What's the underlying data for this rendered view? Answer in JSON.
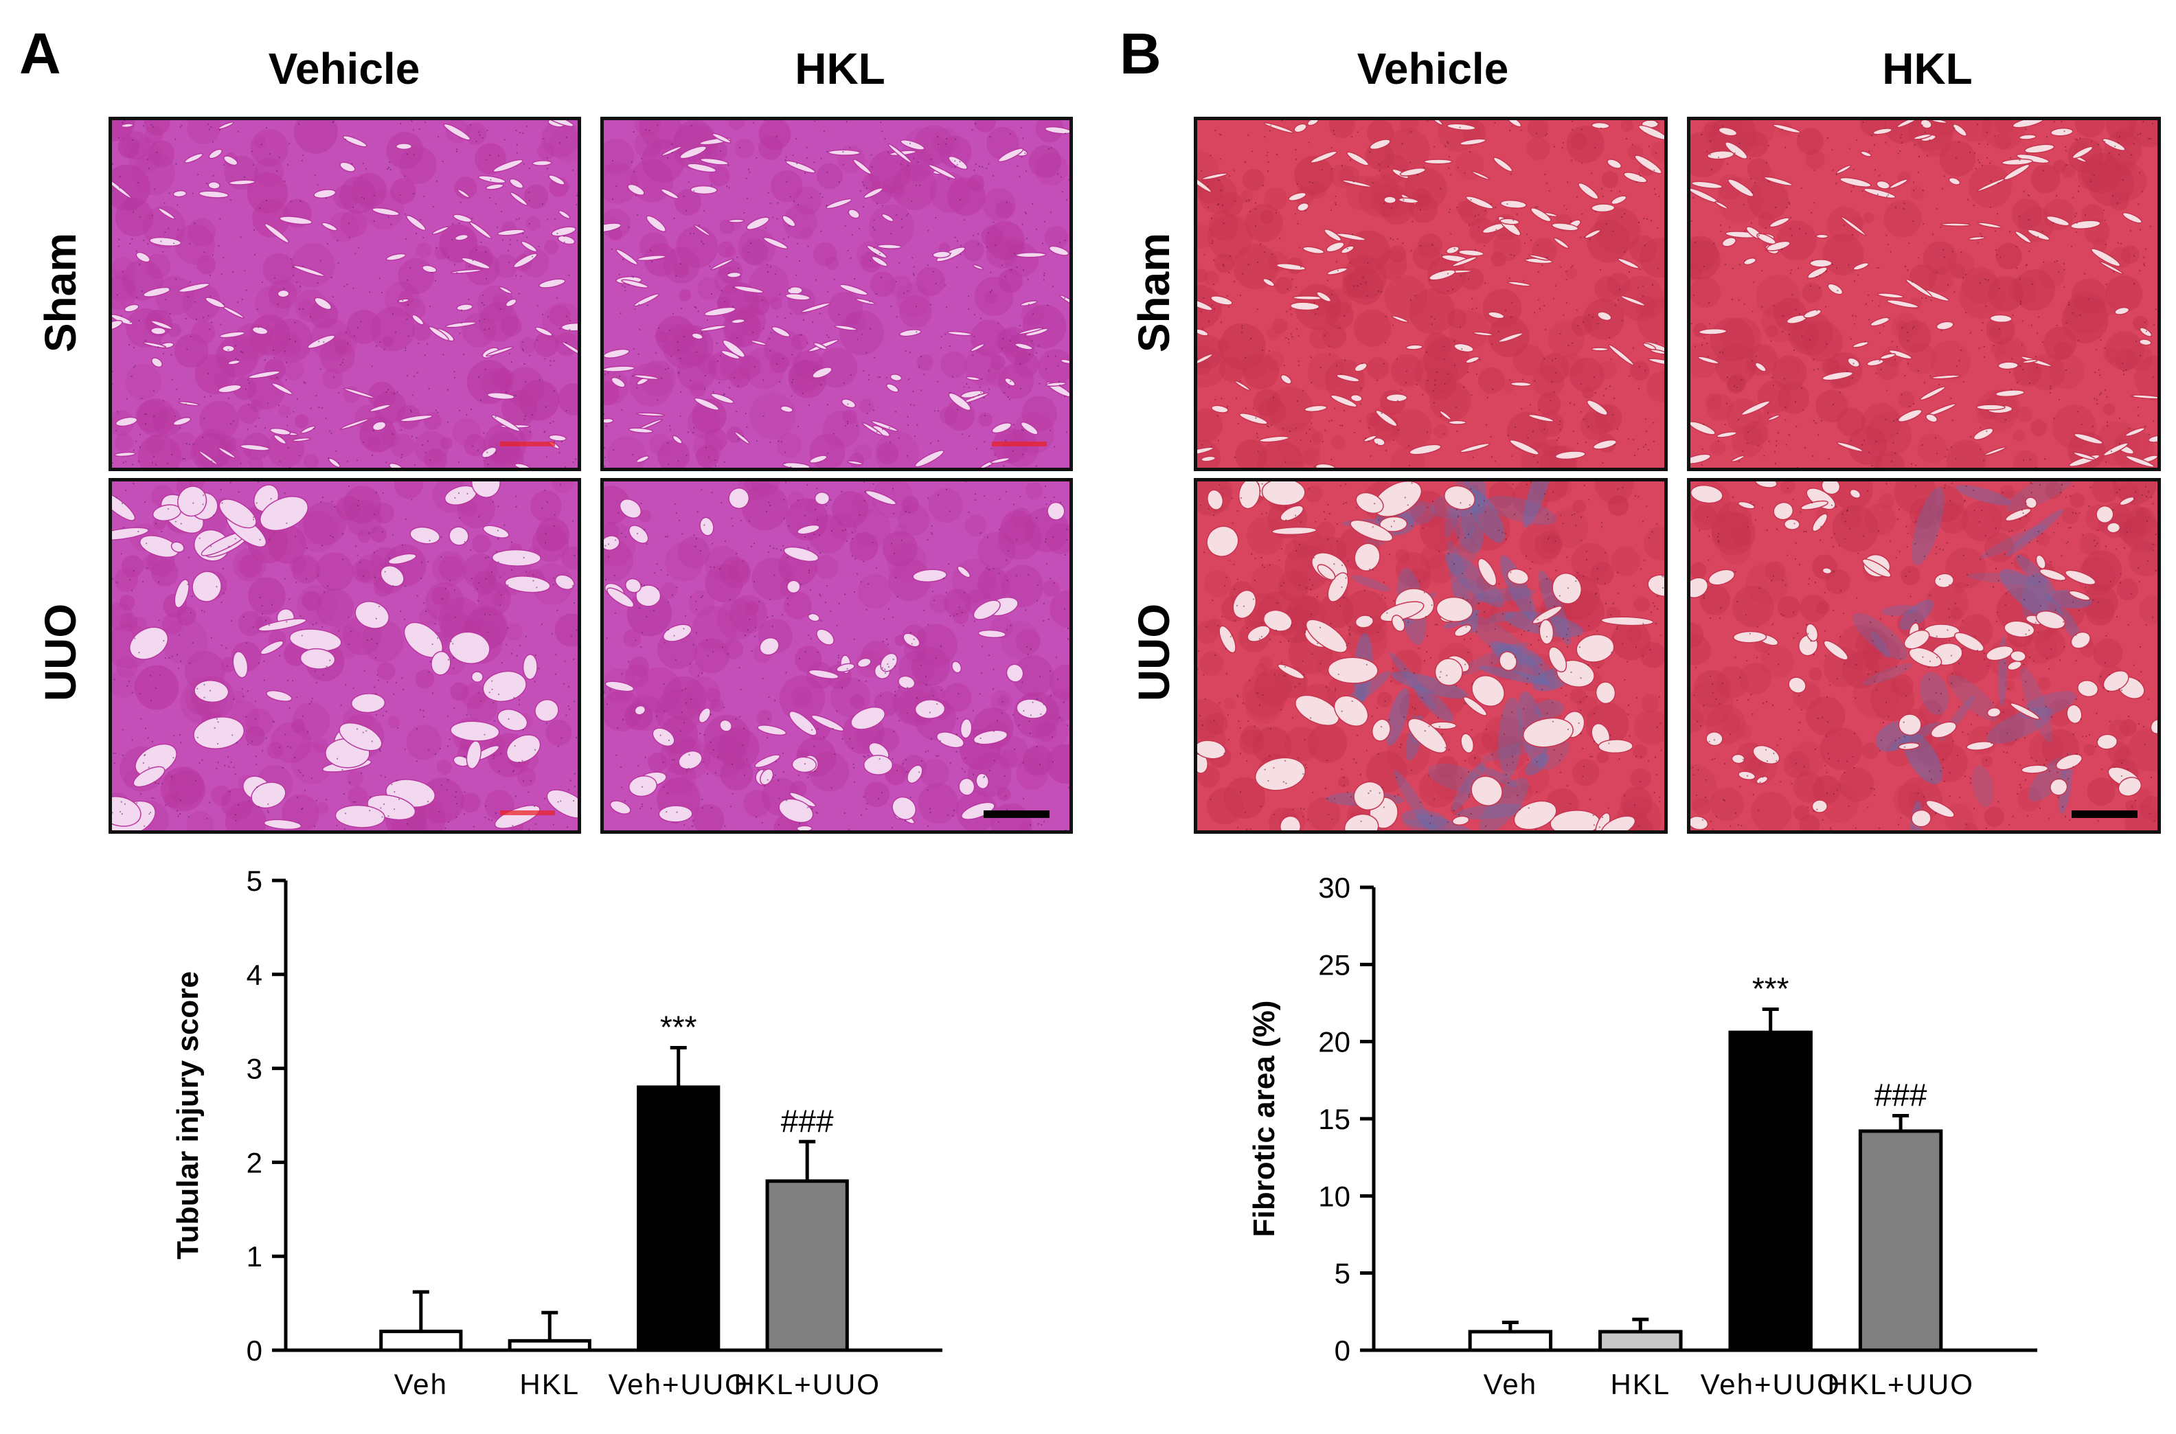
{
  "panel_a": {
    "letter": "A",
    "columns": [
      "Vehicle",
      "HKL"
    ],
    "rows": [
      "Sham",
      "UUO"
    ],
    "stain": {
      "background": "#c44fb8",
      "tissue": "#b8379f",
      "lumen": "#f3d9ef",
      "nuclei": "#5b1f63"
    }
  },
  "panel_b": {
    "letter": "B",
    "columns": [
      "Vehicle",
      "HKL"
    ],
    "rows": [
      "Sham",
      "UUO"
    ],
    "stain": {
      "background": "#d9455e",
      "tissue": "#c6344f",
      "lumen": "#f6dfe3",
      "fibrosis": "#6a6ba8"
    }
  },
  "chart_data": [
    {
      "type": "bar",
      "categories": [
        "Veh",
        "HKL",
        "Veh+UUO",
        "HKL+UUO"
      ],
      "values": [
        0.2,
        0.1,
        2.8,
        1.8
      ],
      "errors": [
        0.42,
        0.3,
        0.42,
        0.42
      ],
      "bar_colors": [
        "#ffffff",
        "#ffffff",
        "#000000",
        "#808080"
      ],
      "annotations": [
        "",
        "",
        "***",
        "###"
      ],
      "ylabel": "Tubular injury score",
      "ylim": [
        0,
        5
      ],
      "yticks": [
        "0",
        "1",
        "2",
        "3",
        "4",
        "5"
      ]
    },
    {
      "type": "bar",
      "categories": [
        "Veh",
        "HKL",
        "Veh+UUO",
        "HKL+UUO"
      ],
      "values": [
        1.2,
        1.2,
        20.6,
        14.2
      ],
      "errors": [
        0.6,
        0.8,
        1.5,
        1.0
      ],
      "bar_colors": [
        "#ffffff",
        "#c8c8c8",
        "#000000",
        "#808080"
      ],
      "annotations": [
        "",
        "",
        "***",
        "###"
      ],
      "ylabel": "Fibrotic area (%)",
      "ylim": [
        0,
        30
      ],
      "yticks": [
        "0",
        "5",
        "10",
        "15",
        "20",
        "25",
        "30"
      ]
    }
  ]
}
